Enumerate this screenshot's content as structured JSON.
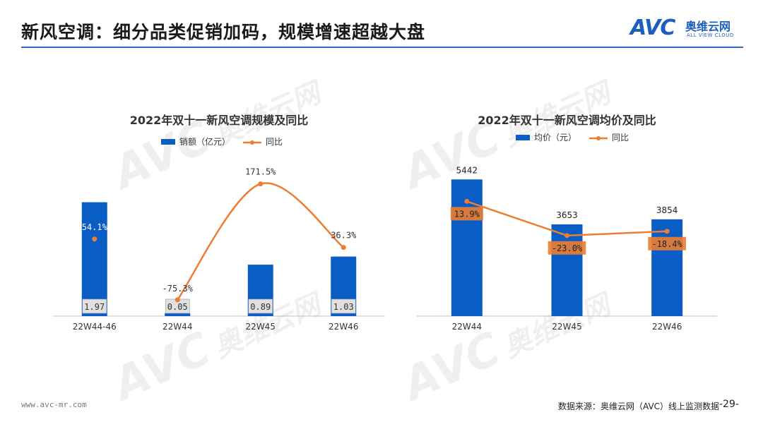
{
  "header": {
    "title": "新风空调：细分品类促销加码，规模增速超越大盘",
    "logo_mark": "AVC",
    "logo_cn": "奥维云网",
    "logo_en": "ALL VIEW CLOUD"
  },
  "watermark": {
    "mark": "AVC",
    "cn": "奥维云网",
    "en": "ALL VIEW CLOUD"
  },
  "colors": {
    "bar": "#0b5dc6",
    "line": "#ed7d31",
    "label_box": "#e0e0e0",
    "rule": "#2d6cc0"
  },
  "chart_data": [
    {
      "type": "bar+line",
      "title": "2022年双十一新风空调规模及同比",
      "legend": {
        "placement": "top-center",
        "bar_label": "销额（亿元）",
        "line_label": "同比"
      },
      "categories": [
        "22W44-46",
        "22W44",
        "22W45",
        "22W46"
      ],
      "series": [
        {
          "name": "销额（亿元）",
          "kind": "bar",
          "values": [
            1.97,
            0.05,
            0.89,
            1.03
          ],
          "labels": [
            "1.97",
            "0.05",
            "0.89",
            "1.03"
          ]
        },
        {
          "name": "同比",
          "kind": "line",
          "values": [
            54.1,
            -75.3,
            171.5,
            36.3
          ],
          "labels": [
            "54.1%",
            "-75.3%",
            "171.5%",
            "36.3%"
          ],
          "connected_from_index": 1
        }
      ],
      "bar_ylim": [
        0,
        2.6
      ],
      "line_ylim": [
        -110,
        210
      ],
      "grid": false
    },
    {
      "type": "bar+line",
      "title": "2022年双十一新风空调均价及同比",
      "legend": {
        "placement": "top-center",
        "bar_label": "均价（元）",
        "line_label": "同比"
      },
      "categories": [
        "22W44",
        "22W45",
        "22W46"
      ],
      "series": [
        {
          "name": "均价（元）",
          "kind": "bar",
          "values": [
            5442,
            3653,
            3854
          ],
          "labels": [
            "5442",
            "3653",
            "3854"
          ]
        },
        {
          "name": "同比",
          "kind": "line",
          "values": [
            13.9,
            -23.0,
            -18.4
          ],
          "labels": [
            "13.9%",
            "-23.0%",
            "-18.4%"
          ],
          "connected_from_index": 0
        }
      ],
      "bar_ylim": [
        0,
        5900
      ],
      "line_ylim": [
        -110,
        50
      ],
      "grid": false
    }
  ],
  "footer": {
    "url": "www.avc-mr.com",
    "source": "数据来源：奥维云网（AVC）线上监测数据",
    "page": "-29-"
  }
}
